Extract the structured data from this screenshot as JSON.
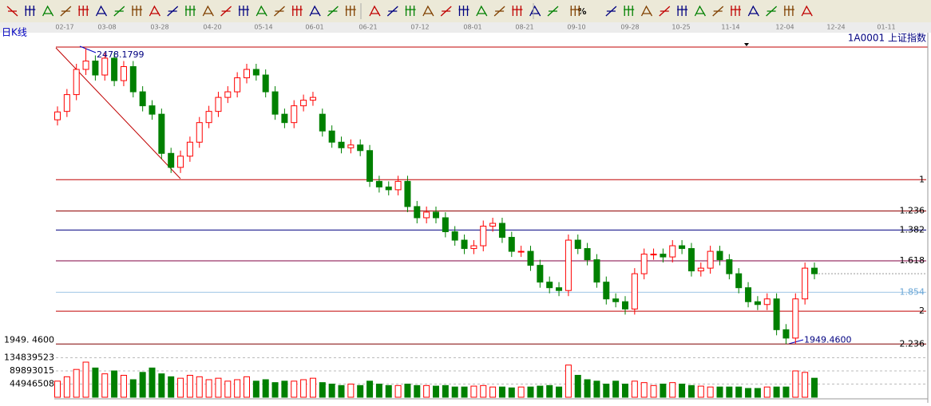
{
  "header": {
    "period": "日K线",
    "symbol": "1A0001 上证指数",
    "percent_tool": "%"
  },
  "date_labels": [
    "02-17",
    "03-08",
    "03-28",
    "04-20",
    "05-14",
    "06-01",
    "06-21",
    "07-12",
    "08-01",
    "08-21",
    "09-10",
    "09-28",
    "10-25",
    "11-14",
    "12-04",
    "12-24",
    "01-11"
  ],
  "chart_data": {
    "type": "candlestick",
    "ylim": [
      1937,
      2507
    ],
    "open": [
      2350,
      2365,
      2395,
      2440,
      2455,
      2430,
      2460,
      2420,
      2445,
      2400,
      2375,
      2360,
      2290,
      2265,
      2285,
      2310,
      2345,
      2365,
      2390,
      2400,
      2425,
      2440,
      2430,
      2400,
      2360,
      2345,
      2375,
      2385,
      2360,
      2330,
      2310,
      2300,
      2305,
      2295,
      2240,
      2230,
      2225,
      2240,
      2195,
      2175,
      2185,
      2175,
      2150,
      2135,
      2120,
      2125,
      2160,
      2165,
      2140,
      2115,
      2115,
      2090,
      2060,
      2050,
      2045,
      2135,
      2120,
      2100,
      2060,
      2030,
      2025,
      2012,
      2075,
      2110,
      2110,
      2105,
      2125,
      2120,
      2080,
      2085,
      2115,
      2100,
      2075,
      2050,
      2025,
      2020,
      2030,
      1975,
      1960,
      2030,
      2085
    ],
    "close": [
      2364,
      2395,
      2440,
      2455,
      2430,
      2460,
      2420,
      2445,
      2400,
      2375,
      2360,
      2290,
      2265,
      2285,
      2310,
      2345,
      2365,
      2390,
      2400,
      2425,
      2440,
      2430,
      2400,
      2360,
      2345,
      2375,
      2385,
      2390,
      2330,
      2310,
      2300,
      2305,
      2295,
      2240,
      2230,
      2225,
      2240,
      2195,
      2175,
      2185,
      2175,
      2150,
      2135,
      2120,
      2125,
      2160,
      2165,
      2140,
      2115,
      2115,
      2090,
      2060,
      2050,
      2045,
      2135,
      2120,
      2100,
      2060,
      2030,
      2025,
      2012,
      2075,
      2110,
      2110,
      2105,
      2125,
      2120,
      2080,
      2085,
      2115,
      2100,
      2075,
      2050,
      2025,
      2020,
      2030,
      1975,
      1960,
      2030,
      2085,
      2075
    ],
    "high": [
      2374,
      2405,
      2450,
      2478.1799,
      2465,
      2470,
      2470,
      2455,
      2455,
      2410,
      2385,
      2370,
      2300,
      2295,
      2320,
      2355,
      2375,
      2400,
      2410,
      2435,
      2450,
      2450,
      2440,
      2410,
      2370,
      2385,
      2395,
      2400,
      2370,
      2340,
      2320,
      2315,
      2315,
      2305,
      2250,
      2240,
      2250,
      2250,
      2205,
      2195,
      2195,
      2185,
      2160,
      2145,
      2135,
      2170,
      2175,
      2175,
      2150,
      2125,
      2125,
      2100,
      2070,
      2060,
      2145,
      2145,
      2130,
      2110,
      2070,
      2040,
      2035,
      2085,
      2120,
      2120,
      2120,
      2135,
      2135,
      2130,
      2095,
      2125,
      2125,
      2110,
      2085,
      2060,
      2035,
      2040,
      2040,
      1985,
      2040,
      2095,
      2095
    ],
    "low": [
      2340,
      2355,
      2385,
      2430,
      2420,
      2420,
      2410,
      2410,
      2390,
      2365,
      2350,
      2280,
      2255,
      2255,
      2275,
      2300,
      2335,
      2355,
      2380,
      2390,
      2415,
      2420,
      2390,
      2350,
      2335,
      2335,
      2365,
      2375,
      2320,
      2300,
      2290,
      2290,
      2285,
      2230,
      2220,
      2215,
      2215,
      2185,
      2165,
      2165,
      2165,
      2140,
      2125,
      2110,
      2110,
      2115,
      2150,
      2130,
      2105,
      2105,
      2080,
      2050,
      2040,
      2035,
      2035,
      2110,
      2090,
      2050,
      2020,
      2015,
      2002,
      2002,
      2065,
      2100,
      2095,
      2095,
      2110,
      2070,
      2070,
      2075,
      2090,
      2065,
      2040,
      2015,
      2010,
      2010,
      1965,
      1949.46,
      1950,
      2020,
      2065
    ],
    "volume": [
      55000000,
      70000000,
      95000000,
      120000000,
      100000000,
      80000000,
      90000000,
      75000000,
      60000000,
      85000000,
      100000000,
      80000000,
      70000000,
      65000000,
      75000000,
      70000000,
      60000000,
      65000000,
      55000000,
      60000000,
      70000000,
      55000000,
      60000000,
      50000000,
      55000000,
      55000000,
      60000000,
      65000000,
      50000000,
      45000000,
      40000000,
      45000000,
      40000000,
      55000000,
      45000000,
      40000000,
      40000000,
      45000000,
      40000000,
      40000000,
      38000000,
      40000000,
      35000000,
      35000000,
      38000000,
      40000000,
      35000000,
      35000000,
      32000000,
      35000000,
      35000000,
      38000000,
      40000000,
      35000000,
      110000000,
      75000000,
      60000000,
      55000000,
      45000000,
      55000000,
      45000000,
      55000000,
      50000000,
      40000000,
      45000000,
      50000000,
      45000000,
      40000000,
      38000000,
      35000000,
      35000000,
      35000000,
      35000000,
      30000000,
      30000000,
      35000000,
      35000000,
      35000000,
      90000000,
      85000000,
      65000000
    ],
    "volume_lim": [
      0,
      180000000
    ],
    "volume_ticks": [
      134839523,
      89893015,
      44946508
    ],
    "low_label": "1949. 4600",
    "annotations": [
      {
        "value": 2478.1799,
        "label": "2478.1799"
      },
      {
        "value": 1949.46,
        "label": "1949.4600"
      }
    ],
    "fib_levels": [
      {
        "ratio": 1,
        "price": 2243,
        "color": "#c00000"
      },
      {
        "ratio": 1.236,
        "price": 2187,
        "color": "#900000"
      },
      {
        "ratio": 1.382,
        "price": 2153,
        "color": "#000080"
      },
      {
        "ratio": 1.618,
        "price": 2098,
        "color": "#800040"
      },
      {
        "ratio": 1.854,
        "price": 2042,
        "color": "#9ec6e6"
      },
      {
        "ratio": 2,
        "price": 2008,
        "color": "#c00000"
      },
      {
        "ratio": 2.236,
        "price": 1949.46,
        "color": "#800000"
      }
    ],
    "up_color": "#ff0000",
    "down_color": "#008000"
  }
}
